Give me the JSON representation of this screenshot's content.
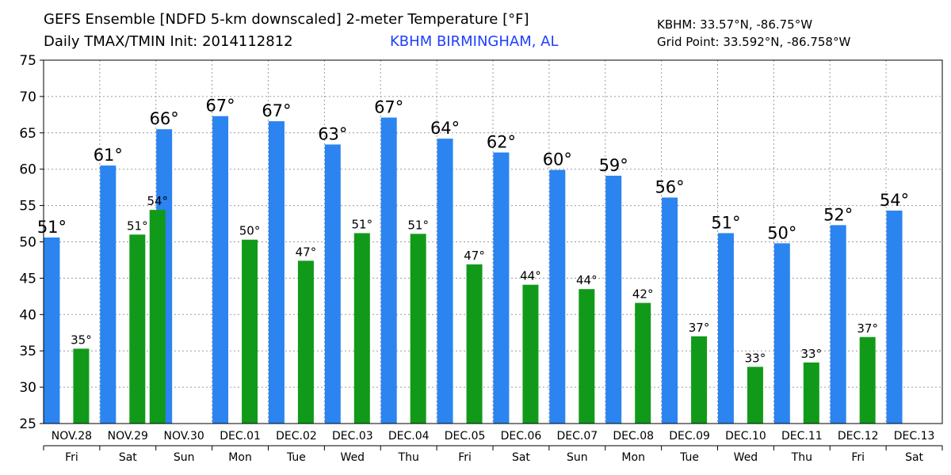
{
  "header": {
    "title": "GEFS Ensemble [NDFD 5-km downscaled] 2-meter Temperature [°F]",
    "subtitle": "Daily TMAX/TMIN Init: 2014112812",
    "location": "KBHM BIRMINGHAM, AL",
    "station_coords": "KBHM: 33.57°N, -86.75°W",
    "grid_point": "Grid Point: 33.592°N, -86.758°W"
  },
  "colors": {
    "tmax": "#2b84f0",
    "tmin": "#119a19"
  },
  "chart_data": {
    "type": "bar",
    "title": "GEFS Ensemble [NDFD 5-km downscaled] 2-meter Temperature [°F]",
    "ylim": [
      25,
      75
    ],
    "yticks": [
      25,
      30,
      35,
      40,
      45,
      50,
      55,
      60,
      65,
      70,
      75
    ],
    "grid": true,
    "categories": [
      "NOV.28",
      "NOV.29",
      "NOV.30",
      "DEC.01",
      "DEC.02",
      "DEC.03",
      "DEC.04",
      "DEC.05",
      "DEC.06",
      "DEC.07",
      "DEC.08",
      "DEC.09",
      "DEC.10",
      "DEC.11",
      "DEC.12",
      "DEC.13"
    ],
    "weekdays": [
      "Fri",
      "Sat",
      "Sun",
      "Mon",
      "Tue",
      "Wed",
      "Thu",
      "Fri",
      "Sat",
      "Sun",
      "Mon",
      "Tue",
      "Wed",
      "Thu",
      "Fri",
      "Sat"
    ],
    "series": [
      {
        "key": "tmax",
        "values": [
          50.6,
          60.5,
          65.5,
          67.3,
          66.6,
          63.4,
          67.1,
          64.2,
          62.3,
          59.9,
          59.1,
          56.1,
          51.2,
          49.8,
          52.3,
          54.3
        ],
        "labels": [
          "51°",
          "61°",
          "66°",
          "67°",
          "67°",
          "63°",
          "67°",
          "64°",
          "62°",
          "60°",
          "59°",
          "56°",
          "51°",
          "50°",
          "52°",
          "54°"
        ]
      },
      {
        "key": "tmin",
        "values": [
          35.3,
          51.0,
          null,
          50.3,
          47.4,
          51.2,
          51.1,
          46.9,
          44.1,
          43.5,
          41.6,
          37.0,
          32.8,
          33.4,
          36.9,
          null
        ],
        "labels": [
          "35°",
          "51°",
          "",
          "50°",
          "47°",
          "51°",
          "51°",
          "47°",
          "44°",
          "44°",
          "42°",
          "37°",
          "33°",
          "33°",
          "37°",
          ""
        ]
      },
      {
        "key": "tmin_prior",
        "values": [
          null,
          null,
          54.4,
          null,
          null,
          null,
          null,
          null,
          null,
          null,
          null,
          null,
          null,
          null,
          null,
          null
        ],
        "labels": [
          "",
          "",
          "54°",
          "",
          "",
          "",
          "",
          "",
          "",
          "",
          "",
          "",
          "",
          "",
          "",
          ""
        ]
      }
    ]
  }
}
